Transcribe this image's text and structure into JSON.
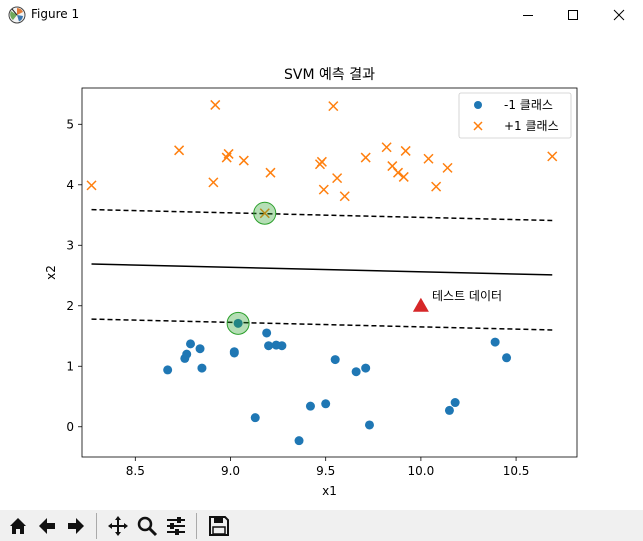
{
  "window": {
    "title": "Figure 1",
    "app_icon": "matplotlib-icon",
    "controls": [
      "minimize-icon",
      "maximize-icon",
      "close-icon"
    ]
  },
  "toolbar": {
    "buttons": [
      {
        "name": "home-button",
        "icon": "home-icon"
      },
      {
        "name": "back-button",
        "icon": "arrow-left-icon"
      },
      {
        "name": "forward-button",
        "icon": "arrow-right-icon"
      },
      {
        "name": "pan-button",
        "icon": "move-icon"
      },
      {
        "name": "zoom-button",
        "icon": "zoom-icon"
      },
      {
        "name": "subplots-button",
        "icon": "sliders-icon"
      },
      {
        "name": "save-button",
        "icon": "save-icon"
      }
    ]
  },
  "chart_data": {
    "type": "scatter",
    "title": "SVM 예측 결과",
    "xlabel": "x1",
    "ylabel": "x2",
    "xlim": [
      8.22,
      10.82
    ],
    "ylim": [
      -0.5,
      5.6
    ],
    "xticks": [
      8.5,
      9.0,
      9.5,
      10.0,
      10.5
    ],
    "xtick_labels": [
      "8.5",
      "9.0",
      "9.5",
      "10.0",
      "10.5"
    ],
    "yticks": [
      0,
      1,
      2,
      3,
      4,
      5
    ],
    "ytick_labels": [
      "0",
      "1",
      "2",
      "3",
      "4",
      "5"
    ],
    "legend_position": "top-right",
    "colors": {
      "class_neg": "#1f77b4",
      "class_pos": "#ff7f0e",
      "support": "#2ca02c",
      "test": "#d62728",
      "line": "#000000"
    },
    "series": [
      {
        "name": "-1 클래스",
        "marker": "circle",
        "points": [
          [
            8.67,
            0.94
          ],
          [
            8.76,
            1.13
          ],
          [
            8.77,
            1.2
          ],
          [
            8.79,
            1.37
          ],
          [
            8.84,
            1.29
          ],
          [
            8.85,
            0.97
          ],
          [
            9.02,
            1.22
          ],
          [
            9.02,
            1.24
          ],
          [
            9.04,
            1.71
          ],
          [
            9.13,
            0.15
          ],
          [
            9.19,
            1.55
          ],
          [
            9.2,
            1.34
          ],
          [
            9.24,
            1.35
          ],
          [
            9.27,
            1.34
          ],
          [
            9.36,
            -0.23
          ],
          [
            9.42,
            0.34
          ],
          [
            9.5,
            0.38
          ],
          [
            9.55,
            1.11
          ],
          [
            9.66,
            0.91
          ],
          [
            9.71,
            0.97
          ],
          [
            9.73,
            0.03
          ],
          [
            10.15,
            0.27
          ],
          [
            10.18,
            0.4
          ],
          [
            10.39,
            1.4
          ],
          [
            10.45,
            1.14
          ]
        ]
      },
      {
        "name": "+1 클래스",
        "marker": "x",
        "points": [
          [
            8.27,
            3.99
          ],
          [
            8.73,
            4.57
          ],
          [
            8.91,
            4.04
          ],
          [
            8.92,
            5.32
          ],
          [
            8.98,
            4.45
          ],
          [
            8.99,
            4.51
          ],
          [
            9.07,
            4.4
          ],
          [
            9.18,
            3.53
          ],
          [
            9.21,
            4.2
          ],
          [
            9.47,
            4.34
          ],
          [
            9.48,
            4.38
          ],
          [
            9.49,
            3.92
          ],
          [
            9.54,
            5.3
          ],
          [
            9.56,
            4.11
          ],
          [
            9.6,
            3.81
          ],
          [
            9.71,
            4.45
          ],
          [
            9.82,
            4.62
          ],
          [
            9.85,
            4.31
          ],
          [
            9.88,
            4.2
          ],
          [
            9.91,
            4.13
          ],
          [
            9.92,
            4.56
          ],
          [
            10.04,
            4.43
          ],
          [
            10.08,
            3.97
          ],
          [
            10.14,
            4.28
          ],
          [
            10.69,
            4.47
          ]
        ]
      }
    ],
    "support_vectors": [
      [
        9.04,
        1.71
      ],
      [
        9.18,
        3.53
      ]
    ],
    "decision_boundary": {
      "x": [
        8.27,
        10.69
      ],
      "y": [
        2.69,
        2.51
      ]
    },
    "margins": [
      {
        "x": [
          8.27,
          10.69
        ],
        "y": [
          3.59,
          3.41
        ]
      },
      {
        "x": [
          8.27,
          10.69
        ],
        "y": [
          1.78,
          1.6
        ]
      }
    ],
    "test_point": {
      "x": 10.0,
      "y": 2.0,
      "label": "테스트 데이터"
    }
  }
}
